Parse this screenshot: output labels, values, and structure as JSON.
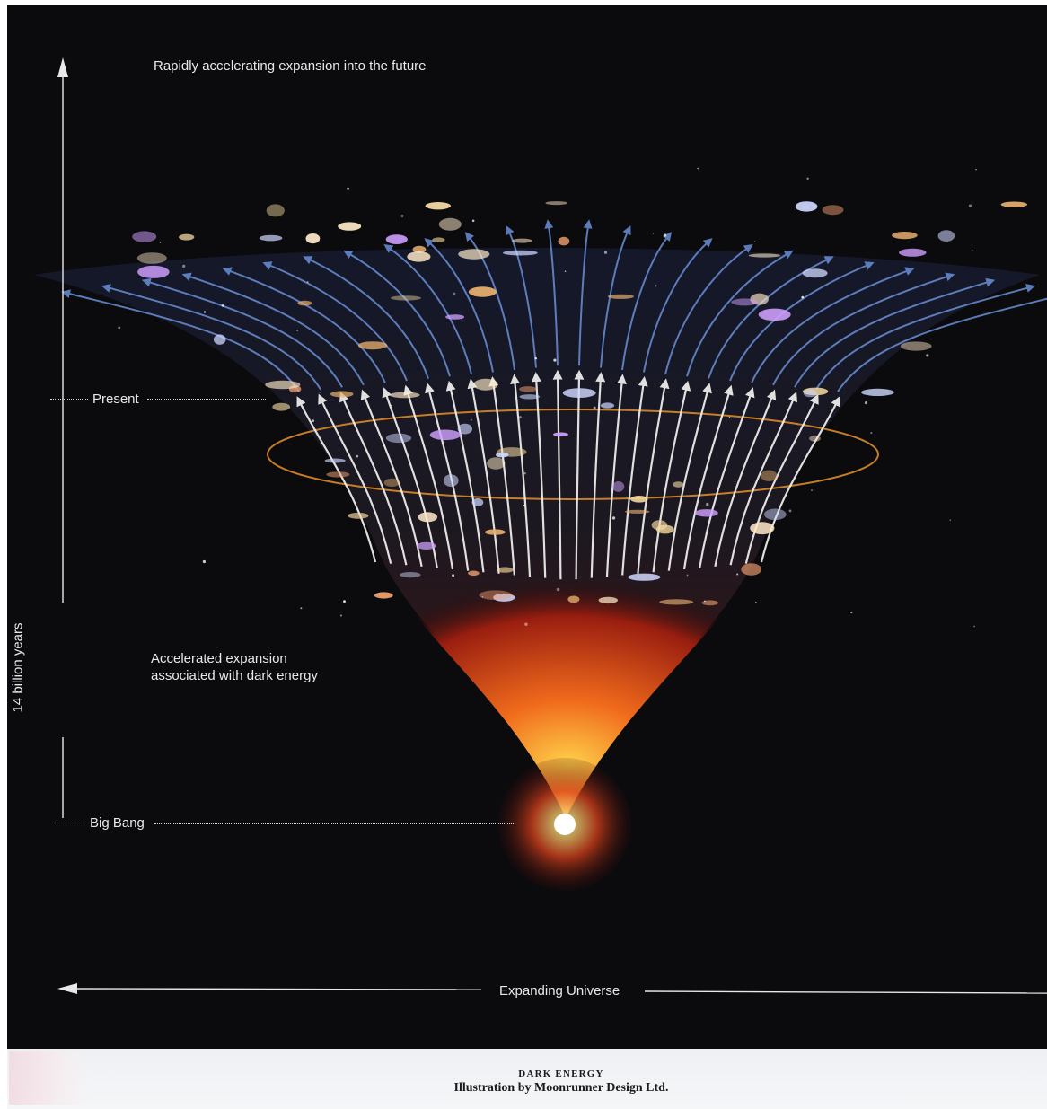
{
  "labels": {
    "future": "Rapidly accelerating expansion into the future",
    "present": "Present",
    "big_bang": "Big Bang",
    "dark_energy": [
      "Accelerated expansion",
      "associated with dark energy"
    ],
    "time_axis": "14 billion years",
    "space_axis": "Expanding Universe"
  },
  "caption": {
    "title": "DARK ENERGY",
    "credit": "Illustration by Moonrunner Design Ltd."
  },
  "colors": {
    "background": "#0b0b0e",
    "arrow_white": "#f2f2f0",
    "arrow_blue": "#6a8fd6",
    "fire": "#e8461a",
    "ring": "#d98a2a"
  }
}
